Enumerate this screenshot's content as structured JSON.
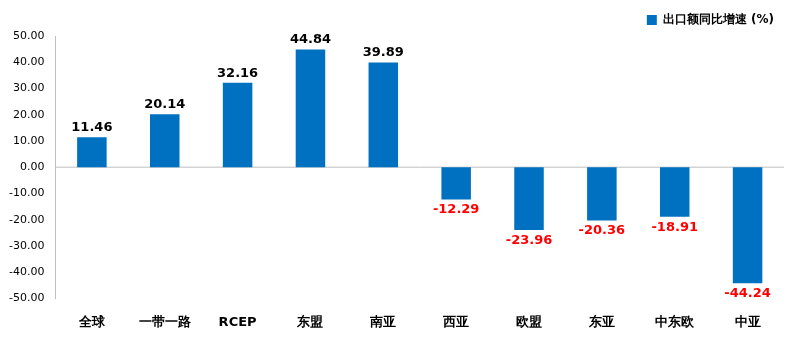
{
  "chart_data": {
    "type": "bar",
    "categories": [
      "全球",
      "一带一路",
      "RCEP",
      "东盟",
      "南亚",
      "西亚",
      "欧盟",
      "东亚",
      "中东欧",
      "中亚"
    ],
    "series": [
      {
        "name": "出口额同比增速 (%)",
        "color": "#0070c0",
        "values": [
          11.46,
          20.14,
          32.16,
          44.84,
          39.89,
          -12.29,
          -23.96,
          -20.36,
          -18.91,
          -44.24
        ]
      }
    ],
    "ylim": [
      -50,
      50
    ],
    "yticks": [
      {
        "value": -50,
        "label": "-50.00"
      },
      {
        "value": -40,
        "label": "-40.00"
      },
      {
        "value": -30,
        "label": "-30.00"
      },
      {
        "value": -20,
        "label": "-20.00"
      },
      {
        "value": -10,
        "label": "-10.00"
      },
      {
        "value": 0,
        "label": "0.00"
      },
      {
        "value": 10,
        "label": "10.00"
      },
      {
        "value": 20,
        "label": "20.00"
      },
      {
        "value": 30,
        "label": "30.00"
      },
      {
        "value": 40,
        "label": "40.00"
      },
      {
        "value": 50,
        "label": "50.00"
      }
    ],
    "grid": false,
    "legend": "top-right",
    "data_labels": true
  }
}
